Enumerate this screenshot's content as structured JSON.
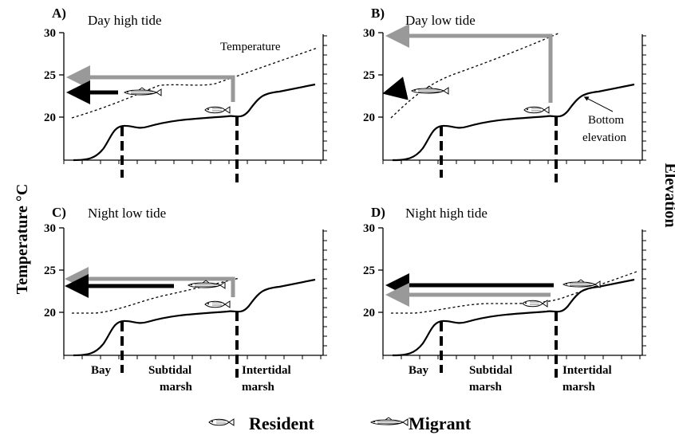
{
  "y_axis_left_label": "Temperature °C",
  "y_axis_right_label": "Elevation",
  "y_ticks": [
    "20",
    "25",
    "30"
  ],
  "colors": {
    "migrant_arrow": "#000000",
    "resident_arrow": "#999999",
    "line": "#000000"
  },
  "panels": [
    {
      "letter": "A)",
      "title": "Day high tide",
      "annotation": "Temperature"
    },
    {
      "letter": "B)",
      "title": "Day low tide",
      "annotation_line1": "Bottom",
      "annotation_line2": "elevation"
    },
    {
      "letter": "C)",
      "title": "Night low tide"
    },
    {
      "letter": "D)",
      "title": "Night high tide"
    }
  ],
  "zones": {
    "bay": "Bay",
    "subtidal_line1": "Subtidal",
    "subtidal_line2": "marsh",
    "intertidal_line1": "Intertidal",
    "intertidal_line2": "marsh"
  },
  "legend": {
    "resident": "Resident",
    "migrant": "Migrant",
    "resident_icon": "small-fish-icon",
    "migrant_icon": "slender-fish-icon"
  }
}
